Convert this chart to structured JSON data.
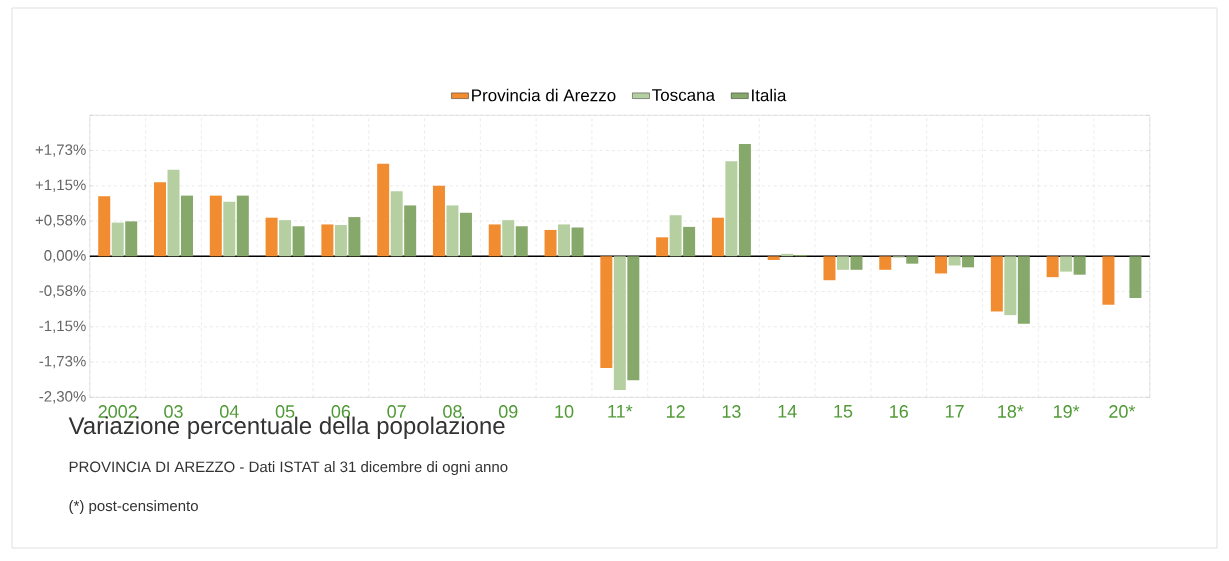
{
  "chart_data": {
    "type": "bar",
    "title": "Variazione percentuale della popolazione",
    "subtitle": "PROVINCIA DI AREZZO - Dati ISTAT al 31 dicembre di ogni anno",
    "annotations": [
      "(*) post-censimento"
    ],
    "categories": [
      "2002",
      "03",
      "04",
      "05",
      "06",
      "07",
      "08",
      "09",
      "10",
      "11*",
      "12",
      "13",
      "14",
      "15",
      "16",
      "17",
      "18*",
      "19*",
      "20*"
    ],
    "series": [
      {
        "name": "Provincia di Arezzo",
        "color": "#f28c30",
        "values": [
          0.98,
          1.21,
          0.99,
          0.63,
          0.52,
          1.51,
          1.15,
          0.52,
          0.43,
          -1.82,
          0.31,
          0.63,
          -0.06,
          -0.39,
          -0.22,
          -0.28,
          -0.9,
          -0.34,
          -0.79
        ]
      },
      {
        "name": "Toscana",
        "color": "#b5cfa0",
        "values": [
          0.55,
          1.41,
          0.89,
          0.59,
          0.51,
          1.06,
          0.83,
          0.59,
          0.52,
          -2.18,
          0.67,
          1.55,
          0.04,
          -0.22,
          -0.02,
          -0.15,
          -0.96,
          -0.25,
          null
        ]
      },
      {
        "name": "Italia",
        "color": "#86a86a",
        "values": [
          0.57,
          0.99,
          0.99,
          0.49,
          0.64,
          0.83,
          0.71,
          0.49,
          0.47,
          -2.02,
          0.48,
          1.83,
          0.02,
          -0.22,
          -0.12,
          -0.18,
          -1.1,
          -0.3,
          -0.68
        ]
      }
    ],
    "ylim": [
      -2.3,
      2.3
    ],
    "yticks": [
      {
        "value": -2.3,
        "label": "-2,30%"
      },
      {
        "value": -1.725,
        "label": "-1,73%"
      },
      {
        "value": -1.15,
        "label": "-1,15%"
      },
      {
        "value": -0.575,
        "label": "-0,58%"
      },
      {
        "value": 0,
        "label": "0,00%"
      },
      {
        "value": 0.575,
        "label": "+0,58%"
      },
      {
        "value": 1.15,
        "label": "+1,15%"
      },
      {
        "value": 1.725,
        "label": "+1,73%"
      },
      {
        "value": 2.3,
        "label": null
      }
    ],
    "grid": true,
    "legend": "top"
  }
}
